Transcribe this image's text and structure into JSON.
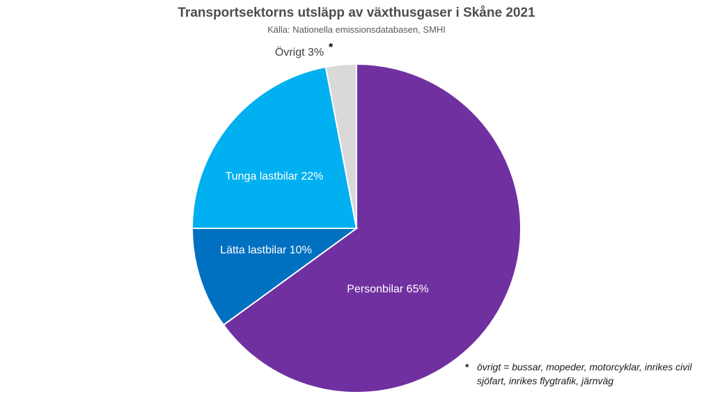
{
  "chart_data": {
    "type": "pie",
    "title": "Transportsektorns utsläpp av växthusgaser i Skåne 2021",
    "subtitle": "Källa: Nationella emissionsdatabasen, SMHI",
    "slices": [
      {
        "label": "Personbilar 65%",
        "value": 65,
        "color": "#7030a0",
        "label_color": "#ffffff"
      },
      {
        "label": "Lätta lastbilar 10%",
        "value": 10,
        "color": "#0070c0",
        "label_color": "#ffffff"
      },
      {
        "label": "Tunga lastbilar 22%",
        "value": 22,
        "color": "#00b0f0",
        "label_color": "#ffffff"
      },
      {
        "label": "Övrigt 3%",
        "value": 3,
        "color": "#d9d9d9",
        "label_color": "#404040",
        "marker": "*"
      }
    ],
    "start": "12 o'clock",
    "direction": "clockwise",
    "footnote": {
      "marker": "*",
      "text": "övrigt = bussar, mopeder, motorcyklar, inrikes civil sjöfart, inrikes flygtrafik, järnväg"
    }
  }
}
